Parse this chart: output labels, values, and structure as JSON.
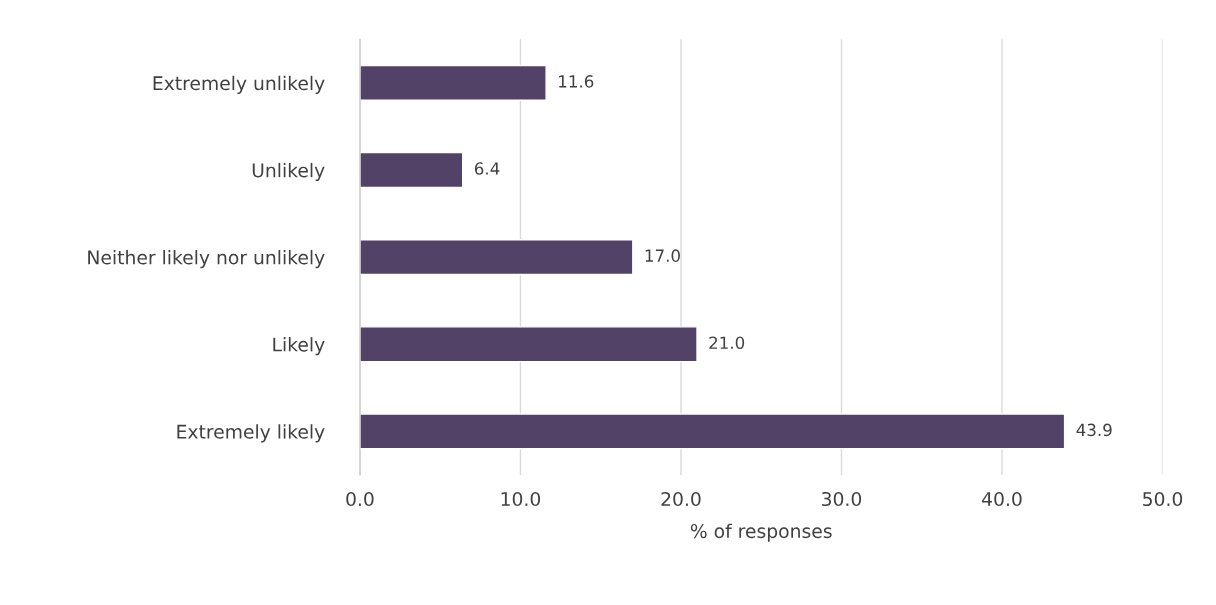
{
  "chart_data": {
    "type": "bar",
    "orientation": "horizontal",
    "xlabel": "% of responses",
    "categories": [
      "Extremely unlikely",
      "Unlikely",
      "Neither likely nor unlikely",
      "Likely",
      "Extremely likely"
    ],
    "values": [
      11.6,
      6.4,
      17.0,
      21.0,
      43.9
    ],
    "value_labels": [
      "11.6",
      "6.4",
      "17.0",
      "21.0",
      "43.9"
    ],
    "color": "#524268",
    "xlim": [
      0,
      50
    ],
    "xticks": [
      {
        "value": 0,
        "label": "0.0"
      },
      {
        "value": 10,
        "label": "10.0"
      },
      {
        "value": 20,
        "label": "20.0"
      },
      {
        "value": 30,
        "label": "30.0"
      },
      {
        "value": 40,
        "label": "40.0"
      },
      {
        "value": 50,
        "label": "50.0"
      }
    ],
    "grid": "x"
  }
}
